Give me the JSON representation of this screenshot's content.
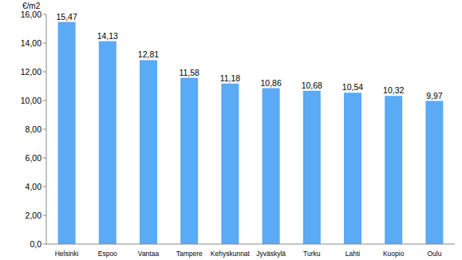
{
  "chart_data": {
    "type": "bar",
    "ylabel": "€/m2",
    "categories": [
      "Helsinki",
      "Espoo",
      "Vantaa",
      "Tampere",
      "Kehyskunnat",
      "Jyväskylä",
      "Turku",
      "Lahti",
      "Kuopio",
      "Oulu"
    ],
    "values": [
      15.47,
      14.13,
      12.81,
      11.58,
      11.18,
      10.86,
      10.68,
      10.54,
      10.32,
      9.97
    ],
    "value_labels": [
      "15,47",
      "14,13",
      "12,81",
      "11,58",
      "11,18",
      "10,86",
      "10,68",
      "10,54",
      "10,32",
      "9,97"
    ],
    "data_labels": true,
    "color": "#5aaaf5",
    "ylim": [
      0,
      16
    ],
    "yticks": [
      {
        "value": 0,
        "label": "0,0"
      },
      {
        "value": 2,
        "label": "2,00"
      },
      {
        "value": 4,
        "label": "4,00"
      },
      {
        "value": 6,
        "label": "6,00"
      },
      {
        "value": 8,
        "label": "8,00"
      },
      {
        "value": 10,
        "label": "10,00"
      },
      {
        "value": 12,
        "label": "12,00"
      },
      {
        "value": 14,
        "label": "14,00"
      },
      {
        "value": 16,
        "label": "16,00"
      }
    ],
    "grid": false
  }
}
